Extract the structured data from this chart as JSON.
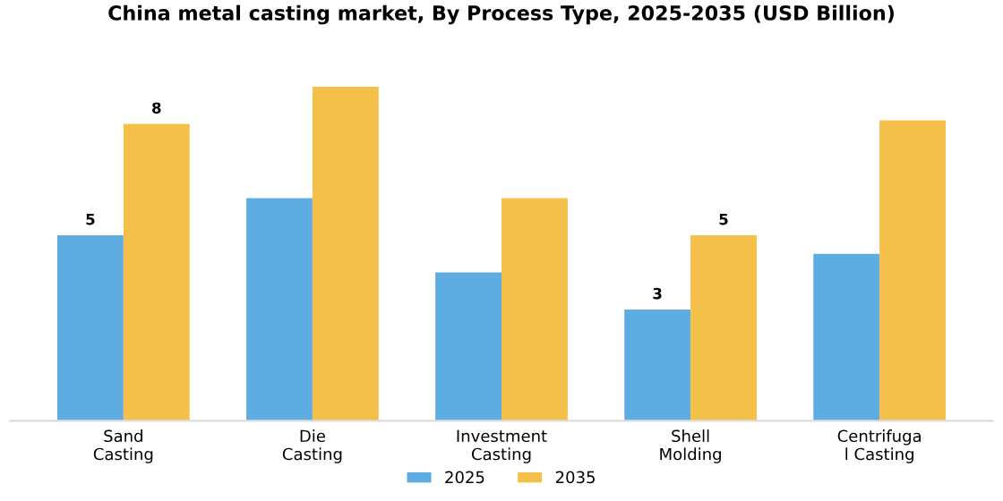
{
  "chart_data": {
    "type": "bar",
    "title": "China metal casting market, By Process Type, 2025-2035 (USD Billion)",
    "categories": [
      "Sand\nCasting",
      "Die\nCasting",
      "Investment\nCasting",
      "Shell\nMolding",
      "Centrifuga\nl Casting"
    ],
    "series": [
      {
        "name": "2025",
        "color": "#5dade2",
        "values": [
          5,
          6,
          4,
          3,
          4.5
        ],
        "value_labels": [
          "5",
          null,
          null,
          "3",
          null
        ]
      },
      {
        "name": "2035",
        "color": "#f5c04a",
        "values": [
          8,
          9,
          6,
          5,
          8.1
        ],
        "value_labels": [
          "8",
          null,
          null,
          "5",
          null
        ]
      }
    ],
    "legend": "bottom",
    "grid": false
  }
}
